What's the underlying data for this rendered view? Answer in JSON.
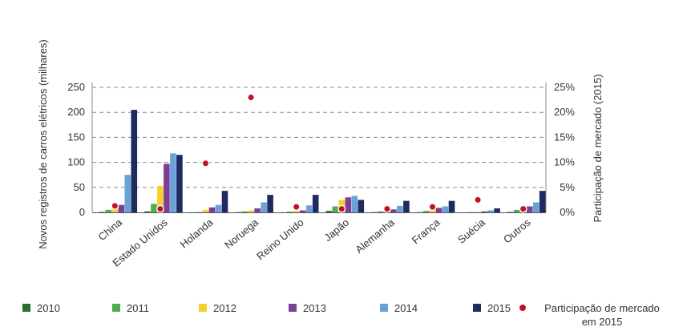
{
  "chart_data": {
    "type": "bar",
    "ylabel": "Novos registros de carros elétricos (milhares)",
    "y2label": "Participação de mercado (2015)",
    "ylim": [
      0,
      250
    ],
    "y2lim": [
      0,
      25
    ],
    "yticks": [
      "0",
      "50",
      "100",
      "150",
      "200",
      "250"
    ],
    "y2ticks": [
      "0%",
      "5%",
      "10%",
      "15%",
      "20%",
      "25%"
    ],
    "grid": "dashed horizontal",
    "legend_position": "bottom",
    "categories": [
      "China",
      "Estado Unidos",
      "Holanda",
      "Noruega",
      "Reino Unido",
      "Japão",
      "Alemanha",
      "França",
      "Suécia",
      "Outros"
    ],
    "series": [
      {
        "name": "2010",
        "color": "#2a6e32",
        "values": [
          1,
          2,
          0.3,
          0.5,
          0.3,
          3,
          0.5,
          0.5,
          0.2,
          1
        ]
      },
      {
        "name": "2011",
        "color": "#4fae50",
        "values": [
          5,
          17,
          0.8,
          2,
          1.5,
          12,
          2,
          3,
          0.5,
          5
        ]
      },
      {
        "name": "2012",
        "color": "#f2d22c",
        "values": [
          10,
          53,
          5,
          4,
          3,
          25,
          3,
          6,
          1,
          8
        ]
      },
      {
        "name": "2013",
        "color": "#7d3e96",
        "values": [
          15,
          97,
          10,
          8,
          4,
          30,
          6,
          9,
          2,
          12
        ]
      },
      {
        "name": "2014",
        "color": "#6aa2d8",
        "values": [
          75,
          118,
          15,
          20,
          14,
          33,
          13,
          12,
          4,
          20
        ]
      },
      {
        "name": "2015",
        "color": "#1e2a60",
        "values": [
          205,
          115,
          43,
          35,
          35,
          25,
          23,
          23,
          8,
          43
        ]
      }
    ],
    "market_share_2015": {
      "name": "Participação de mercado em 2015",
      "color": "#c0102a",
      "values": [
        1.3,
        0.7,
        9.8,
        23,
        1.1,
        0.7,
        0.7,
        1.1,
        2.5,
        0.7
      ]
    }
  },
  "legend": {
    "items": [
      {
        "label": "2010",
        "color": "#2a6e32"
      },
      {
        "label": "2011",
        "color": "#4fae50"
      },
      {
        "label": "2012",
        "color": "#f2d22c"
      },
      {
        "label": "2013",
        "color": "#7d3e96"
      },
      {
        "label": "2014",
        "color": "#6aa2d8"
      },
      {
        "label": "2015",
        "color": "#1e2a60"
      }
    ],
    "share_line1": "Participação de mercado",
    "share_line2": "em 2015",
    "share_color": "#c0102a"
  }
}
